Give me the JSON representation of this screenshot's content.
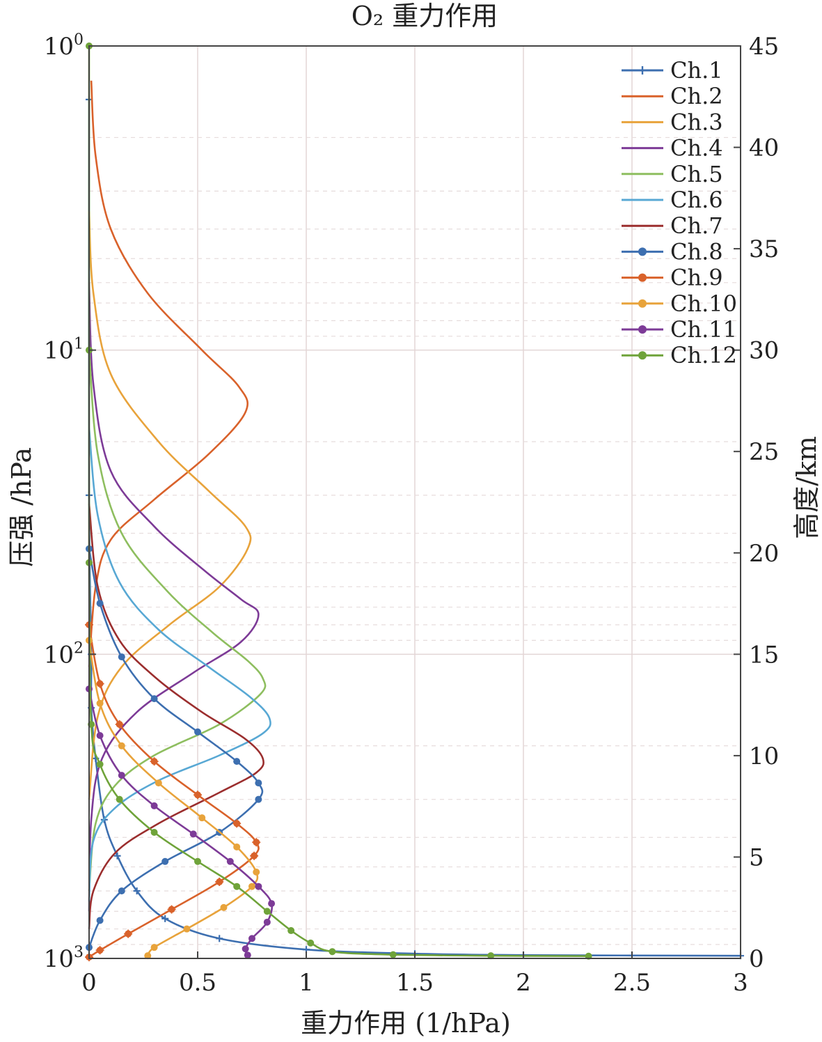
{
  "chart_data": {
    "type": "line",
    "title": "O₂ 重力作用",
    "xlabel": "重力作用 (1/hPa)",
    "ylabel": "压强 /hPa",
    "y2label": "高度/km",
    "xlim": [
      0,
      3
    ],
    "ylim": [
      1,
      1000
    ],
    "yscale": "log",
    "y2lim": [
      0,
      45
    ],
    "x_ticks": [
      "0",
      "0.5",
      "1",
      "1.5",
      "2",
      "2.5",
      "3"
    ],
    "x_tick_values": [
      0,
      0.5,
      1,
      1.5,
      2,
      2.5,
      3
    ],
    "y_ticks": [
      {
        "base": "10",
        "exp": "0",
        "value": 1
      },
      {
        "base": "10",
        "exp": "1",
        "value": 10
      },
      {
        "base": "10",
        "exp": "2",
        "value": 100
      },
      {
        "base": "10",
        "exp": "3",
        "value": 1000
      }
    ],
    "y2_ticks": [
      "0",
      "5",
      "10",
      "15",
      "20",
      "25",
      "30",
      "35",
      "40",
      "45"
    ],
    "y2_tick_values": [
      0,
      5,
      10,
      15,
      20,
      25,
      30,
      35,
      40,
      45
    ],
    "grid": true,
    "legend_position": "top-right",
    "series": [
      {
        "name": "Ch.1",
        "color": "#3d6fb0",
        "marker": "plus",
        "points": [
          [
            0.0,
            1.5
          ],
          [
            0.0,
            30
          ],
          [
            0.01,
            100
          ],
          [
            0.01,
            150
          ],
          [
            0.03,
            220
          ],
          [
            0.07,
            350
          ],
          [
            0.13,
            460
          ],
          [
            0.22,
            600
          ],
          [
            0.35,
            740
          ],
          [
            0.6,
            860
          ],
          [
            1.0,
            935
          ],
          [
            1.5,
            965
          ],
          [
            2.0,
            975
          ],
          [
            2.5,
            978
          ],
          [
            3.0,
            980
          ]
        ]
      },
      {
        "name": "Ch.2",
        "color": "#d9622b",
        "marker": "none",
        "points": [
          [
            0.01,
            1.3
          ],
          [
            0.03,
            2.3
          ],
          [
            0.1,
            4.0
          ],
          [
            0.27,
            6.5
          ],
          [
            0.52,
            10.0
          ],
          [
            0.69,
            13.2
          ],
          [
            0.72,
            16.0
          ],
          [
            0.55,
            22.0
          ],
          [
            0.3,
            31.0
          ],
          [
            0.1,
            42.0
          ],
          [
            0.03,
            60.0
          ],
          [
            0.0,
            110
          ]
        ]
      },
      {
        "name": "Ch.3",
        "color": "#e8a33b",
        "marker": "none",
        "points": [
          [
            0.0,
            3.5
          ],
          [
            0.02,
            6.5
          ],
          [
            0.1,
            12.0
          ],
          [
            0.32,
            20.0
          ],
          [
            0.55,
            29.0
          ],
          [
            0.72,
            38.0
          ],
          [
            0.73,
            45.0
          ],
          [
            0.6,
            60.0
          ],
          [
            0.37,
            80.0
          ],
          [
            0.15,
            110
          ],
          [
            0.04,
            160
          ],
          [
            0.0,
            300
          ]
        ]
      },
      {
        "name": "Ch.4",
        "color": "#7d3b97",
        "marker": "none",
        "points": [
          [
            0.0,
            6.0
          ],
          [
            0.02,
            13.0
          ],
          [
            0.1,
            25.0
          ],
          [
            0.3,
            38.0
          ],
          [
            0.53,
            53.0
          ],
          [
            0.7,
            66.0
          ],
          [
            0.78,
            74.0
          ],
          [
            0.7,
            91.0
          ],
          [
            0.48,
            115
          ],
          [
            0.22,
            155
          ],
          [
            0.06,
            220
          ],
          [
            0.01,
            350
          ],
          [
            0.0,
            700
          ]
        ]
      },
      {
        "name": "Ch.5",
        "color": "#8ebe5f",
        "marker": "none",
        "points": [
          [
            0.0,
            10.0
          ],
          [
            0.04,
            22.0
          ],
          [
            0.15,
            40.0
          ],
          [
            0.36,
            62.0
          ],
          [
            0.57,
            85.0
          ],
          [
            0.73,
            105
          ],
          [
            0.8,
            120
          ],
          [
            0.79,
            135
          ],
          [
            0.6,
            170
          ],
          [
            0.3,
            215
          ],
          [
            0.12,
            270
          ],
          [
            0.03,
            360
          ],
          [
            0.0,
            600
          ]
        ]
      },
      {
        "name": "Ch.6",
        "color": "#58a8d4",
        "marker": "none",
        "points": [
          [
            0.0,
            18.0
          ],
          [
            0.04,
            35.0
          ],
          [
            0.14,
            58.0
          ],
          [
            0.32,
            83.0
          ],
          [
            0.55,
            110
          ],
          [
            0.74,
            138
          ],
          [
            0.83,
            162
          ],
          [
            0.8,
            182
          ],
          [
            0.6,
            215
          ],
          [
            0.32,
            260
          ],
          [
            0.12,
            320
          ],
          [
            0.02,
            410
          ],
          [
            0.0,
            650
          ]
        ]
      },
      {
        "name": "Ch.7",
        "color": "#9b2e2e",
        "marker": "none",
        "points": [
          [
            0.0,
            32.0
          ],
          [
            0.04,
            60.0
          ],
          [
            0.14,
            90.0
          ],
          [
            0.31,
            120
          ],
          [
            0.52,
            155
          ],
          [
            0.72,
            190
          ],
          [
            0.8,
            220
          ],
          [
            0.77,
            245
          ],
          [
            0.6,
            285
          ],
          [
            0.32,
            360
          ],
          [
            0.12,
            450
          ],
          [
            0.02,
            600
          ],
          [
            0.0,
            800
          ]
        ]
      },
      {
        "name": "Ch.8",
        "color": "#3d6fb0",
        "marker": "dot",
        "points": [
          [
            0.0,
            45.0
          ],
          [
            0.05,
            68.0
          ],
          [
            0.15,
            102
          ],
          [
            0.3,
            140
          ],
          [
            0.5,
            180
          ],
          [
            0.68,
            225
          ],
          [
            0.78,
            265
          ],
          [
            0.78,
            300
          ],
          [
            0.6,
            385
          ],
          [
            0.35,
            480
          ],
          [
            0.15,
            600
          ],
          [
            0.05,
            750
          ],
          [
            0.0,
            920
          ]
        ]
      },
      {
        "name": "Ch.9",
        "color": "#d9622b",
        "marker": "star",
        "points": [
          [
            0.0,
            80.0
          ],
          [
            0.05,
            125
          ],
          [
            0.14,
            170
          ],
          [
            0.3,
            225
          ],
          [
            0.5,
            290
          ],
          [
            0.68,
            360
          ],
          [
            0.77,
            415
          ],
          [
            0.76,
            460
          ],
          [
            0.6,
            560
          ],
          [
            0.38,
            690
          ],
          [
            0.18,
            830
          ],
          [
            0.05,
            940
          ],
          [
            0.0,
            990
          ]
        ]
      },
      {
        "name": "Ch.10",
        "color": "#e8a33b",
        "marker": "dot",
        "points": [
          [
            0.0,
            90.0
          ],
          [
            0.05,
            145
          ],
          [
            0.15,
            200
          ],
          [
            0.32,
            265
          ],
          [
            0.52,
            345
          ],
          [
            0.68,
            430
          ],
          [
            0.77,
            520
          ],
          [
            0.75,
            580
          ],
          [
            0.62,
            680
          ],
          [
            0.45,
            800
          ],
          [
            0.3,
            920
          ],
          [
            0.27,
            980
          ]
        ]
      },
      {
        "name": "Ch.11",
        "color": "#7d3b97",
        "marker": "dot",
        "points": [
          [
            0.0,
            130
          ],
          [
            0.05,
            185
          ],
          [
            0.15,
            250
          ],
          [
            0.3,
            315
          ],
          [
            0.48,
            390
          ],
          [
            0.65,
            480
          ],
          [
            0.78,
            580
          ],
          [
            0.84,
            660
          ],
          [
            0.82,
            760
          ],
          [
            0.75,
            860
          ],
          [
            0.72,
            930
          ],
          [
            0.73,
            975
          ]
        ]
      },
      {
        "name": "Ch.12",
        "color": "#6fa33a",
        "marker": "dot",
        "points": [
          [
            0.0,
            1.0
          ],
          [
            0.0,
            10.0
          ],
          [
            0.0,
            50.0
          ],
          [
            0.01,
            170
          ],
          [
            0.05,
            230
          ],
          [
            0.14,
            300
          ],
          [
            0.3,
            385
          ],
          [
            0.5,
            480
          ],
          [
            0.68,
            580
          ],
          [
            0.82,
            700
          ],
          [
            0.93,
            810
          ],
          [
            1.02,
            890
          ],
          [
            1.12,
            950
          ],
          [
            1.4,
            972
          ],
          [
            1.85,
            980
          ],
          [
            2.3,
            983
          ]
        ]
      }
    ]
  }
}
